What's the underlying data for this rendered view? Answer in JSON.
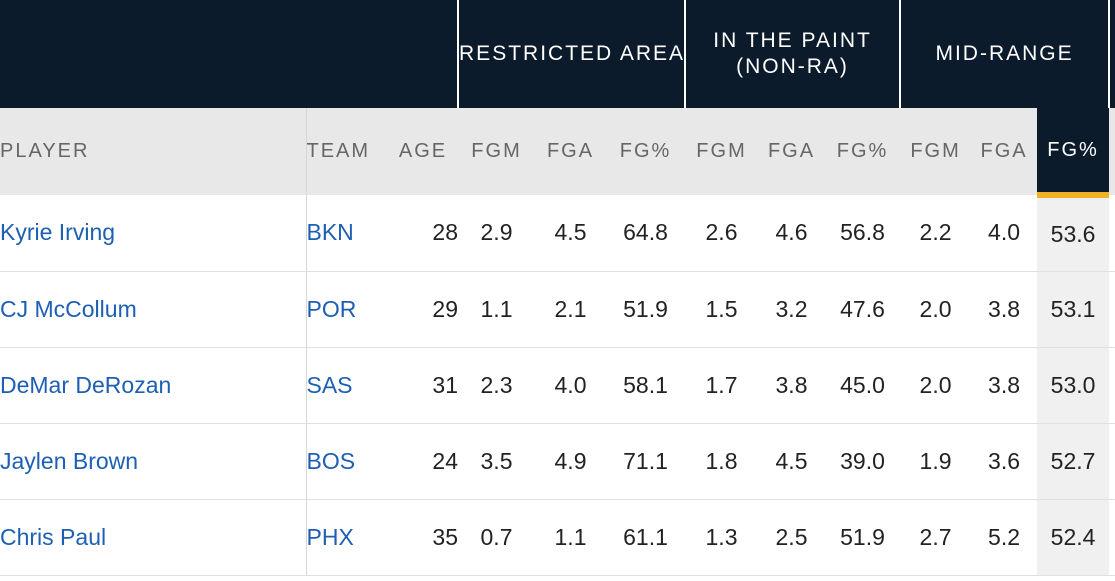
{
  "group_headers": {
    "restricted_area": "RESTRICTED AREA",
    "in_the_paint_line1": "IN THE PAINT",
    "in_the_paint_line2": "(NON-RA)",
    "mid_range": "MID-RANGE"
  },
  "columns": {
    "player": "PLAYER",
    "team": "TEAM",
    "age": "AGE",
    "fgm": "FGM",
    "fga": "FGA",
    "fg_pct": "FG%"
  },
  "sorted_column": "mid_range.fg_pct",
  "colors": {
    "header_bg": "#0c1b2c",
    "sort_accent": "#f0b323",
    "link": "#1d5fb4"
  },
  "rows": [
    {
      "player": "Kyrie Irving",
      "team": "BKN",
      "age": "28",
      "ra_fgm": "2.9",
      "ra_fga": "4.5",
      "ra_pct": "64.8",
      "pt_fgm": "2.6",
      "pt_fga": "4.6",
      "pt_pct": "56.8",
      "mr_fgm": "2.2",
      "mr_fga": "4.0",
      "mr_pct": "53.6"
    },
    {
      "player": "CJ McCollum",
      "team": "POR",
      "age": "29",
      "ra_fgm": "1.1",
      "ra_fga": "2.1",
      "ra_pct": "51.9",
      "pt_fgm": "1.5",
      "pt_fga": "3.2",
      "pt_pct": "47.6",
      "mr_fgm": "2.0",
      "mr_fga": "3.8",
      "mr_pct": "53.1"
    },
    {
      "player": "DeMar DeRozan",
      "team": "SAS",
      "age": "31",
      "ra_fgm": "2.3",
      "ra_fga": "4.0",
      "ra_pct": "58.1",
      "pt_fgm": "1.7",
      "pt_fga": "3.8",
      "pt_pct": "45.0",
      "mr_fgm": "2.0",
      "mr_fga": "3.8",
      "mr_pct": "53.0"
    },
    {
      "player": "Jaylen Brown",
      "team": "BOS",
      "age": "24",
      "ra_fgm": "3.5",
      "ra_fga": "4.9",
      "ra_pct": "71.1",
      "pt_fgm": "1.8",
      "pt_fga": "4.5",
      "pt_pct": "39.0",
      "mr_fgm": "1.9",
      "mr_fga": "3.6",
      "mr_pct": "52.7"
    },
    {
      "player": "Chris Paul",
      "team": "PHX",
      "age": "35",
      "ra_fgm": "0.7",
      "ra_fga": "1.1",
      "ra_pct": "61.1",
      "pt_fgm": "1.3",
      "pt_fga": "2.5",
      "pt_pct": "51.9",
      "mr_fgm": "2.7",
      "mr_fga": "5.2",
      "mr_pct": "52.4"
    }
  ]
}
